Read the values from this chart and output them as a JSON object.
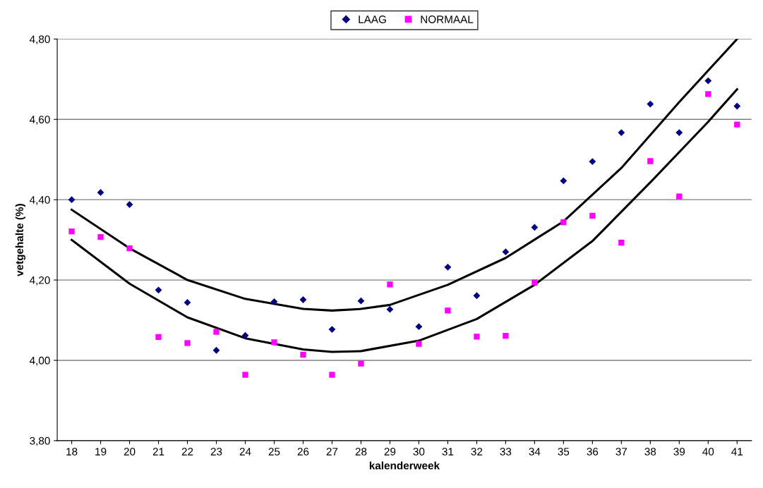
{
  "chart_data": {
    "type": "scatter",
    "xlabel": "kalenderweek",
    "ylabel": "vetgehalte (%)",
    "categories": [
      "18",
      "19",
      "20",
      "21",
      "22",
      "23",
      "24",
      "25",
      "26",
      "27",
      "28",
      "29",
      "30",
      "31",
      "32",
      "33",
      "34",
      "35",
      "36",
      "37",
      "38",
      "39",
      "40",
      "41"
    ],
    "series": [
      {
        "name": "LAAG",
        "color": "#000080",
        "marker": "diamond",
        "values": [
          4.4,
          4.418,
          4.388,
          4.175,
          4.144,
          4.025,
          4.062,
          4.146,
          4.151,
          4.077,
          4.148,
          4.127,
          4.084,
          4.232,
          4.161,
          4.27,
          4.331,
          4.447,
          4.495,
          4.567,
          4.638,
          4.567,
          4.696,
          4.633
        ]
      },
      {
        "name": "NORMAAL",
        "color": "#ff00ff",
        "marker": "square",
        "values": [
          4.321,
          4.307,
          4.279,
          4.058,
          4.043,
          4.071,
          3.964,
          4.045,
          4.014,
          3.964,
          3.992,
          4.189,
          4.041,
          4.124,
          4.059,
          4.061,
          4.194,
          4.344,
          4.36,
          4.293,
          4.496,
          4.408,
          4.663,
          4.587
        ]
      },
      {
        "type": "line",
        "color": "#000000",
        "marker": "none",
        "x": [
          "18",
          "20",
          "22",
          "24",
          "26",
          "27",
          "28",
          "29",
          "31",
          "33",
          "35",
          "37",
          "39",
          "41"
        ],
        "values": [
          4.375,
          4.279,
          4.2,
          4.153,
          4.128,
          4.124,
          4.128,
          4.138,
          4.188,
          4.255,
          4.346,
          4.479,
          4.643,
          4.8
        ]
      },
      {
        "type": "line",
        "color": "#000000",
        "marker": "none",
        "x": [
          "18",
          "20",
          "22",
          "24",
          "26",
          "27",
          "28",
          "30",
          "32",
          "34",
          "36",
          "38",
          "40",
          "41"
        ],
        "values": [
          4.3,
          4.191,
          4.107,
          4.055,
          4.027,
          4.021,
          4.023,
          4.049,
          4.103,
          4.188,
          4.297,
          4.443,
          4.594,
          4.675
        ]
      }
    ],
    "ylim": [
      3.8,
      4.8
    ],
    "yticks": [
      {
        "value": 3.8,
        "label": "3,80"
      },
      {
        "value": 4.0,
        "label": "4,00"
      },
      {
        "value": 4.2,
        "label": "4,20"
      },
      {
        "value": 4.4,
        "label": "4,40"
      },
      {
        "value": 4.6,
        "label": "4,60"
      },
      {
        "value": 4.8,
        "label": "4,80"
      }
    ],
    "grid": "y",
    "legend": "top"
  }
}
